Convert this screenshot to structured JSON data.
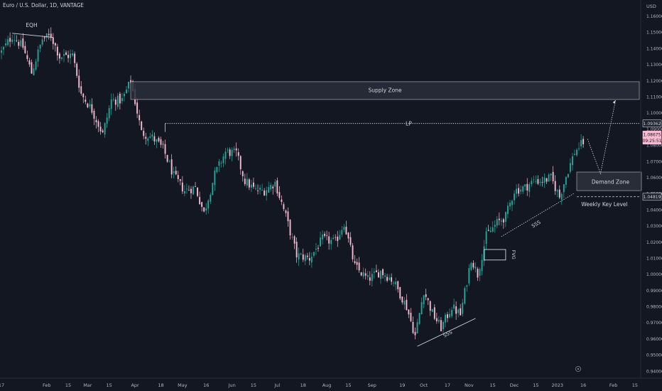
{
  "header": {
    "symbol_title": "Euro / U.S. Dollar, 1D, VANTAGE",
    "currency": "USD"
  },
  "colors": {
    "background": "#131722",
    "candle_up": "#26a69a",
    "candle_down": "#f8bbd0",
    "grid": "#1e222d",
    "axis_text": "#b2b5be",
    "annotation": "#d1d4dc",
    "zone_fill": "#2a2e39",
    "zone_border": "#9598a1"
  },
  "chart_data": {
    "type": "candlestick",
    "y_axis": {
      "ylim": [
        0.9375,
        1.1675
      ],
      "ticks": [
        "1.16000",
        "1.15000",
        "1.14000",
        "1.13000",
        "1.12000",
        "1.11000",
        "1.10000",
        "1.09000",
        "1.08000",
        "1.07000",
        "1.06000",
        "1.05000",
        "1.04000",
        "1.03000",
        "1.02000",
        "1.01000",
        "1.00000",
        "0.99000",
        "0.98000",
        "0.97000",
        "0.96000",
        "0.95000",
        "0.94000"
      ],
      "tick_values": [
        1.16,
        1.15,
        1.14,
        1.13,
        1.12,
        1.11,
        1.1,
        1.09,
        1.08,
        1.07,
        1.06,
        1.05,
        1.04,
        1.03,
        1.02,
        1.01,
        1.0,
        0.99,
        0.98,
        0.97,
        0.96,
        0.95,
        0.94
      ]
    },
    "x_axis": {
      "ticks": [
        "17",
        "Feb",
        "15",
        "Mar",
        "15",
        "Apr",
        "18",
        "May",
        "16",
        "Jun",
        "15",
        "Jul",
        "18",
        "Aug",
        "15",
        "Sep",
        "19",
        "Oct",
        "17",
        "Nov",
        "15",
        "Dec",
        "15",
        "2023",
        "16",
        "Feb",
        "15"
      ],
      "tick_candle_index": [
        0,
        21,
        31,
        40,
        50,
        62,
        74,
        84,
        95,
        107,
        117,
        128,
        140,
        151,
        161,
        172,
        186,
        196,
        207,
        217,
        228,
        238,
        248,
        258,
        270,
        284,
        294
      ]
    },
    "price_labels": [
      {
        "text": "1.09362",
        "value": 1.09362
      },
      {
        "text": "1.08675",
        "value": 1.08675
      },
      {
        "text": "09:25:51",
        "value": 1.083
      },
      {
        "text": "1.04819",
        "value": 1.04819
      }
    ],
    "path_points": [
      [
        0,
        1.138
      ],
      [
        5,
        1.148
      ],
      [
        10,
        1.141
      ],
      [
        14,
        1.125
      ],
      [
        19,
        1.146
      ],
      [
        23,
        1.148
      ],
      [
        27,
        1.135
      ],
      [
        33,
        1.136
      ],
      [
        37,
        1.112
      ],
      [
        42,
        1.102
      ],
      [
        47,
        1.087
      ],
      [
        51,
        1.108
      ],
      [
        56,
        1.108
      ],
      [
        60,
        1.12
      ],
      [
        65,
        1.088
      ],
      [
        70,
        1.085
      ],
      [
        75,
        1.078
      ],
      [
        80,
        1.061
      ],
      [
        85,
        1.052
      ],
      [
        90,
        1.054
      ],
      [
        94,
        1.038
      ],
      [
        99,
        1.062
      ],
      [
        104,
        1.076
      ],
      [
        109,
        1.075
      ],
      [
        113,
        1.058
      ],
      [
        118,
        1.052
      ],
      [
        122,
        1.052
      ],
      [
        127,
        1.057
      ],
      [
        132,
        1.036
      ],
      [
        137,
        1.012
      ],
      [
        143,
        1.01
      ],
      [
        149,
        1.022
      ],
      [
        155,
        1.02
      ],
      [
        159,
        1.032
      ],
      [
        164,
        1.005
      ],
      [
        170,
        0.997
      ],
      [
        176,
        1.002
      ],
      [
        182,
        0.996
      ],
      [
        188,
        0.98
      ],
      [
        192,
        0.962
      ],
      [
        196,
        0.99
      ],
      [
        200,
        0.976
      ],
      [
        204,
        0.967
      ],
      [
        209,
        0.98
      ],
      [
        213,
        0.975
      ],
      [
        218,
        1.01
      ],
      [
        221,
        1.0
      ],
      [
        225,
        1.024
      ],
      [
        230,
        1.032
      ],
      [
        234,
        1.036
      ],
      [
        238,
        1.052
      ],
      [
        243,
        1.054
      ],
      [
        247,
        1.058
      ],
      [
        251,
        1.058
      ],
      [
        255,
        1.06
      ],
      [
        259,
        1.048
      ],
      [
        262,
        1.061
      ],
      [
        266,
        1.076
      ],
      [
        270,
        1.082
      ]
    ],
    "annotations": {
      "eqh": "EQH",
      "supply_zone": "Supply Zone",
      "demand_zone": "Demand Zone",
      "lp": "LP",
      "ssl_1": "SSS",
      "ssl_2": "SSS",
      "fvg": "FVG",
      "weekly_key_level": "Weekly Key Level"
    },
    "levels": {
      "supply_zone": [
        1.1085,
        1.1195
      ],
      "demand_zone": [
        1.052,
        1.0635
      ],
      "lp": 1.09362,
      "weekly_key_level": 1.04819,
      "eqh": [
        1.1495,
        1.147
      ],
      "fvg": [
        1.009,
        1.0155
      ]
    },
    "grid": "off",
    "legend": "none"
  }
}
